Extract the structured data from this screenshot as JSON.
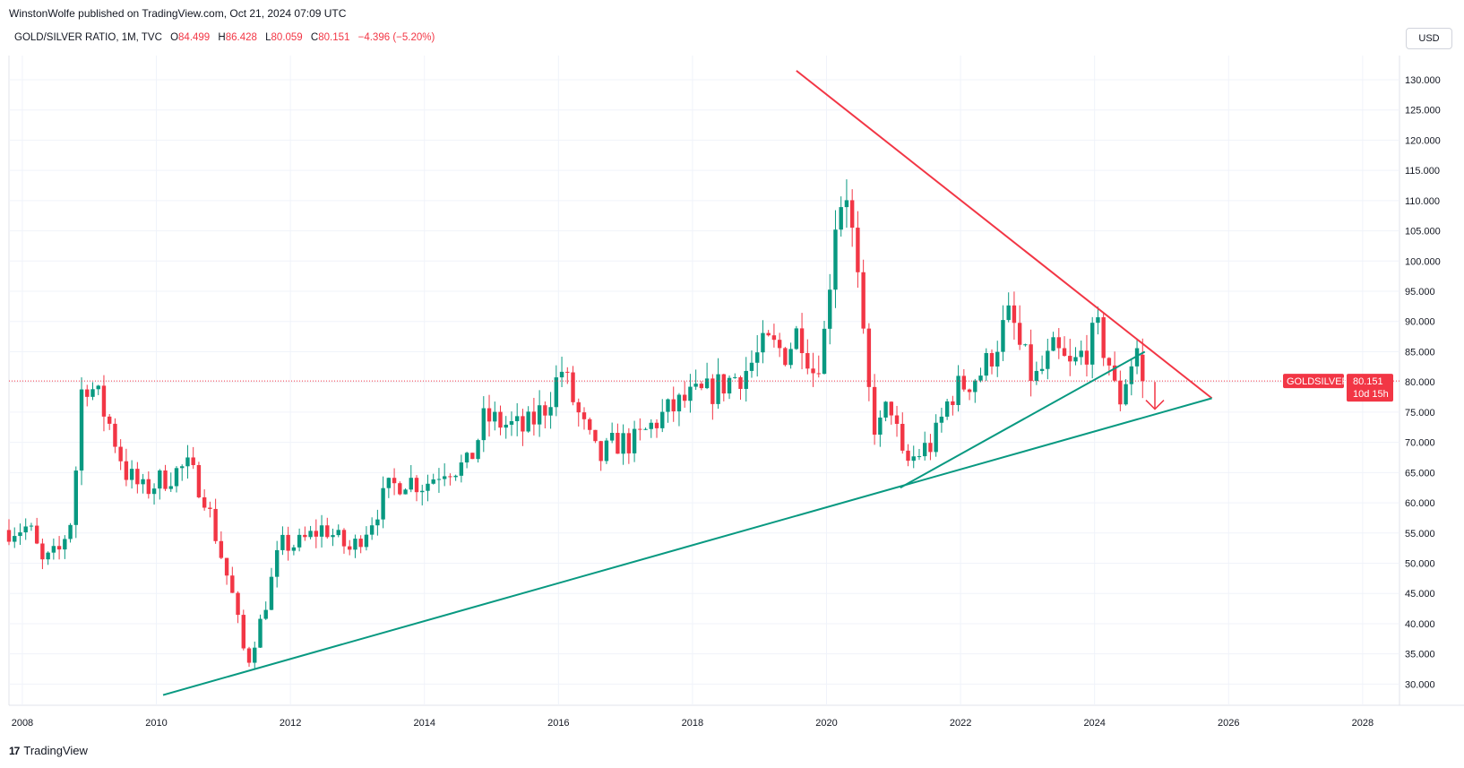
{
  "header": {
    "published_text": "WinstonWolfe published on TradingView.com, Oct 21, 2024 07:09 UTC"
  },
  "legend": {
    "symbol": "GOLD/SILVER RATIO, 1M, TVC",
    "open_label": "O",
    "open": "84.499",
    "high_label": "H",
    "high": "86.428",
    "low_label": "L",
    "low": "80.059",
    "close_label": "C",
    "close": "80.151",
    "change": "−4.396 (−5.20%)"
  },
  "currency_button": "USD",
  "price_tag": {
    "name": "GOLDSILVER",
    "price": "80.151",
    "countdown": "10d 15h"
  },
  "footer": {
    "brand": "TradingView",
    "logo_glyph": "17"
  },
  "colors": {
    "up": "#089981",
    "down": "#f23645",
    "resistance": "#f23645",
    "support": "#089981",
    "grid": "#f0f3fa"
  },
  "chart_data": {
    "type": "candlestick",
    "title": "GOLD/SILVER RATIO, 1M, TVC",
    "xlim": [
      2007.8,
      2028.55
    ],
    "ylim": [
      26.5,
      134
    ],
    "x_ticks": [
      "2008",
      "2010",
      "2012",
      "2014",
      "2016",
      "2018",
      "2020",
      "2022",
      "2024",
      "2026",
      "2028"
    ],
    "y_ticks": [
      "30.000",
      "35.000",
      "40.000",
      "45.000",
      "50.000",
      "55.000",
      "60.000",
      "65.000",
      "70.000",
      "75.000",
      "80.000",
      "85.000",
      "90.000",
      "95.000",
      "100.000",
      "105.000",
      "110.000",
      "115.000",
      "120.000",
      "125.000",
      "130.000"
    ],
    "last_price": 80.151,
    "anchors": [
      [
        2007.8,
        55.5
      ],
      [
        2008.1,
        56
      ],
      [
        2008.3,
        50
      ],
      [
        2008.55,
        52
      ],
      [
        2008.75,
        58
      ],
      [
        2008.9,
        81
      ],
      [
        2009.1,
        78
      ],
      [
        2009.3,
        73
      ],
      [
        2009.55,
        65
      ],
      [
        2009.8,
        62
      ],
      [
        2010.1,
        64
      ],
      [
        2010.45,
        66
      ],
      [
        2010.7,
        62
      ],
      [
        2010.95,
        52
      ],
      [
        2011.15,
        44
      ],
      [
        2011.35,
        33
      ],
      [
        2011.6,
        42
      ],
      [
        2011.85,
        53
      ],
      [
        2012.1,
        53
      ],
      [
        2012.5,
        56
      ],
      [
        2012.9,
        52
      ],
      [
        2013.2,
        57
      ],
      [
        2013.45,
        62
      ],
      [
        2013.7,
        64
      ],
      [
        2014.0,
        63
      ],
      [
        2014.3,
        66
      ],
      [
        2014.65,
        66
      ],
      [
        2014.9,
        74
      ],
      [
        2015.2,
        73
      ],
      [
        2015.5,
        72
      ],
      [
        2015.8,
        76
      ],
      [
        2016.05,
        82
      ],
      [
        2016.35,
        73
      ],
      [
        2016.6,
        67
      ],
      [
        2016.85,
        70
      ],
      [
        2017.15,
        70
      ],
      [
        2017.5,
        74
      ],
      [
        2017.9,
        77
      ],
      [
        2018.2,
        78
      ],
      [
        2018.5,
        80
      ],
      [
        2018.8,
        82
      ],
      [
        2019.1,
        86
      ],
      [
        2019.4,
        85
      ],
      [
        2019.6,
        89
      ],
      [
        2019.8,
        82
      ],
      [
        2019.95,
        86
      ],
      [
        2020.15,
        109
      ],
      [
        2020.3,
        112
      ],
      [
        2020.45,
        98
      ],
      [
        2020.6,
        80
      ],
      [
        2020.75,
        71
      ],
      [
        2020.95,
        77
      ],
      [
        2021.15,
        66
      ],
      [
        2021.35,
        68
      ],
      [
        2021.6,
        70
      ],
      [
        2021.85,
        78
      ],
      [
        2022.1,
        80
      ],
      [
        2022.35,
        82
      ],
      [
        2022.6,
        88
      ],
      [
        2022.75,
        91
      ],
      [
        2022.9,
        85
      ],
      [
        2023.1,
        80
      ],
      [
        2023.4,
        85
      ],
      [
        2023.65,
        82
      ],
      [
        2023.9,
        86
      ],
      [
        2024.05,
        88
      ],
      [
        2024.2,
        84
      ],
      [
        2024.35,
        76
      ],
      [
        2024.5,
        82
      ],
      [
        2024.65,
        86
      ],
      [
        2024.72,
        85.1
      ]
    ],
    "trendlines": [
      {
        "color": "resistance",
        "points": [
          [
            2019.55,
            131.5
          ],
          [
            2025.75,
            77.3
          ]
        ]
      },
      {
        "color": "support",
        "points": [
          [
            2010.1,
            28.2
          ],
          [
            2025.75,
            77.3
          ]
        ]
      },
      {
        "color": "support",
        "points": [
          [
            2021.1,
            62.5
          ],
          [
            2024.75,
            85
          ]
        ]
      }
    ],
    "arrow": {
      "x": 2024.9,
      "y_from": 80,
      "y_to": 75.5
    }
  }
}
